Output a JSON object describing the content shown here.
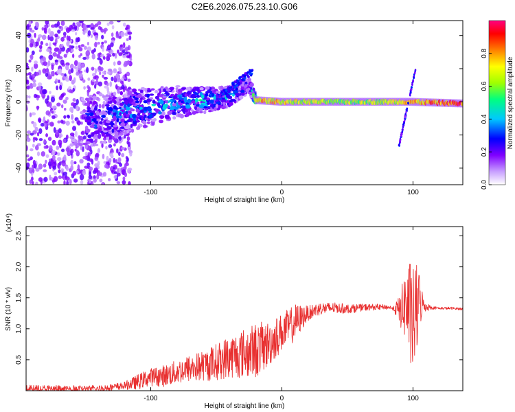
{
  "title": "C2E6.2026.075.23.10.G06",
  "chart_data": [
    {
      "type": "heatmap",
      "title": "C2E6.2026.075.23.10.G06",
      "xlabel": "Height of straight line (km)",
      "ylabel": "Frequency (Hz)",
      "xlim": [
        -195,
        138
      ],
      "ylim": [
        -50,
        49
      ],
      "xticks": [
        -100,
        0,
        100
      ],
      "yticks": [
        -40,
        -20,
        0,
        20,
        40
      ],
      "colorbar": {
        "label": "Normalized spectral amplitude",
        "range": [
          0.0,
          1.0
        ],
        "ticks": [
          "0.0",
          "0.2",
          "0.4",
          "0.6",
          "0.8"
        ],
        "colors": [
          "#ffffff",
          "#c8a0ff",
          "#8000ff",
          "#0000ff",
          "#00c8ff",
          "#00ff80",
          "#a0ff00",
          "#ffff00",
          "#ff8000",
          "#ff0000",
          "#ff0080"
        ]
      },
      "ridge": [
        {
          "x": -140,
          "f": -12,
          "a": 0.35
        },
        {
          "x": -120,
          "f": -6,
          "a": 0.4
        },
        {
          "x": -100,
          "f": -3,
          "a": 0.45
        },
        {
          "x": -80,
          "f": 0,
          "a": 0.45
        },
        {
          "x": -60,
          "f": 1,
          "a": 0.5
        },
        {
          "x": -40,
          "f": 3,
          "a": 0.45
        },
        {
          "x": -25,
          "f": 10,
          "a": 0.3
        },
        {
          "x": -20,
          "f": 1,
          "a": 0.8
        },
        {
          "x": 0,
          "f": 0,
          "a": 0.75
        },
        {
          "x": 40,
          "f": 0,
          "a": 0.65
        },
        {
          "x": 88,
          "f": 0,
          "a": 0.7
        },
        {
          "x": 100,
          "f": 0,
          "a": 0.8
        },
        {
          "x": 138,
          "f": -1,
          "a": 0.95
        }
      ],
      "notes": [
        "diagonal streak near x=90..102 from -28 Hz to +20 Hz",
        "broadband noise for x < -120"
      ]
    },
    {
      "type": "line",
      "title": "",
      "xlabel": "Height of straight line (km)",
      "ylabel": "SNR (10 * v/v)",
      "y_multiplier": "(x10⁴)",
      "xlim": [
        -195,
        138
      ],
      "ylim": [
        0,
        2.65
      ],
      "xticks": [
        -100,
        0,
        100
      ],
      "yticks": [
        0.5,
        1.0,
        1.5,
        2.0,
        2.5
      ],
      "ytick_labels": [
        "0.5",
        "1.0",
        "1.5",
        "2.0",
        "2.5"
      ],
      "color": "#e83030",
      "series": [
        {
          "name": "SNR",
          "x": [
            -195,
            -180,
            -160,
            -140,
            -130,
            -120,
            -110,
            -100,
            -90,
            -80,
            -70,
            -60,
            -50,
            -40,
            -30,
            -20,
            -15,
            -10,
            -5,
            0,
            5,
            10,
            15,
            20,
            25,
            30,
            35,
            40,
            45,
            50,
            60,
            70,
            80,
            85,
            90,
            95,
            100,
            105,
            110,
            120,
            130,
            138
          ],
          "y": [
            0.03,
            0.03,
            0.02,
            0.03,
            0.05,
            0.08,
            0.14,
            0.22,
            0.24,
            0.3,
            0.36,
            0.4,
            0.46,
            0.55,
            0.6,
            0.65,
            0.7,
            0.75,
            0.85,
            0.95,
            1.02,
            1.1,
            1.18,
            1.25,
            1.3,
            1.33,
            1.33,
            1.34,
            1.33,
            1.32,
            1.34,
            1.35,
            1.35,
            1.33,
            1.3,
            1.4,
            1.1,
            1.45,
            1.35,
            1.33,
            1.33,
            1.32
          ]
        }
      ],
      "noise_amplitude": [
        {
          "x": -120,
          "a": 0.06
        },
        {
          "x": -110,
          "a": 0.12
        },
        {
          "x": -60,
          "a": 0.25
        },
        {
          "x": -20,
          "a": 0.45
        },
        {
          "x": 0,
          "a": 0.3
        },
        {
          "x": 10,
          "a": 0.3
        },
        {
          "x": 20,
          "a": 0.12
        },
        {
          "x": 45,
          "a": 0.08
        },
        {
          "x": 85,
          "a": 0.03
        },
        {
          "x": 90,
          "a": 0.25
        },
        {
          "x": 98,
          "a": 0.9
        },
        {
          "x": 102,
          "a": 0.85
        },
        {
          "x": 108,
          "a": 0.1
        },
        {
          "x": 115,
          "a": 0.02
        }
      ]
    }
  ]
}
